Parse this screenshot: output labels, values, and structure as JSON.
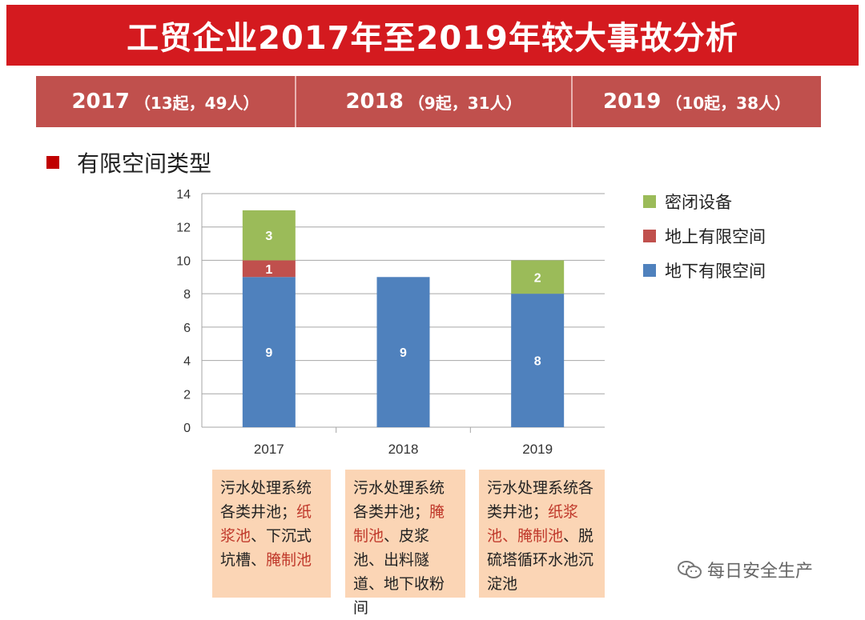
{
  "title": "工贸企业2017年至2019年较大事故分析",
  "years": [
    {
      "year": "2017",
      "detail": "（13起，49人）"
    },
    {
      "year": "2018",
      "detail": "（9起，31人）"
    },
    {
      "year": "2019",
      "detail": "（10起，38人）"
    }
  ],
  "section_label": "有限空间类型",
  "chart_data": {
    "type": "bar",
    "stacked": true,
    "categories": [
      "2017",
      "2018",
      "2019"
    ],
    "series": [
      {
        "name": "地下有限空间",
        "color": "#4f81bd",
        "values": [
          9,
          9,
          8
        ]
      },
      {
        "name": "地上有限空间",
        "color": "#c0504d",
        "values": [
          1,
          0,
          0
        ]
      },
      {
        "name": "密闭设备",
        "color": "#9bbb59",
        "values": [
          3,
          0,
          2
        ]
      }
    ],
    "ylim": [
      0,
      14
    ],
    "yticks": [
      0,
      2,
      4,
      6,
      8,
      10,
      12,
      14
    ],
    "grid": true,
    "legend": "right",
    "legend_order": [
      "密闭设备",
      "地上有限空间",
      "地下有限空间"
    ]
  },
  "notes": [
    {
      "parts": [
        {
          "text": "污水处理系统各类井池；",
          "red": false
        },
        {
          "text": "纸浆池",
          "red": true
        },
        {
          "text": "、下沉式坑槽、",
          "red": false
        },
        {
          "text": "腌制池",
          "red": true
        }
      ]
    },
    {
      "parts": [
        {
          "text": "污水处理系统各类井池；",
          "red": false
        },
        {
          "text": "腌制池",
          "red": true
        },
        {
          "text": "、皮浆池、出料隧道、地下收粉间",
          "red": false
        }
      ]
    },
    {
      "parts": [
        {
          "text": "污水处理系统各类井池；",
          "red": false
        },
        {
          "text": "纸浆池、腌制池",
          "red": true
        },
        {
          "text": "、脱硫塔循环水池沉淀池",
          "red": false
        }
      ]
    }
  ],
  "watermark": "每日安全生产"
}
